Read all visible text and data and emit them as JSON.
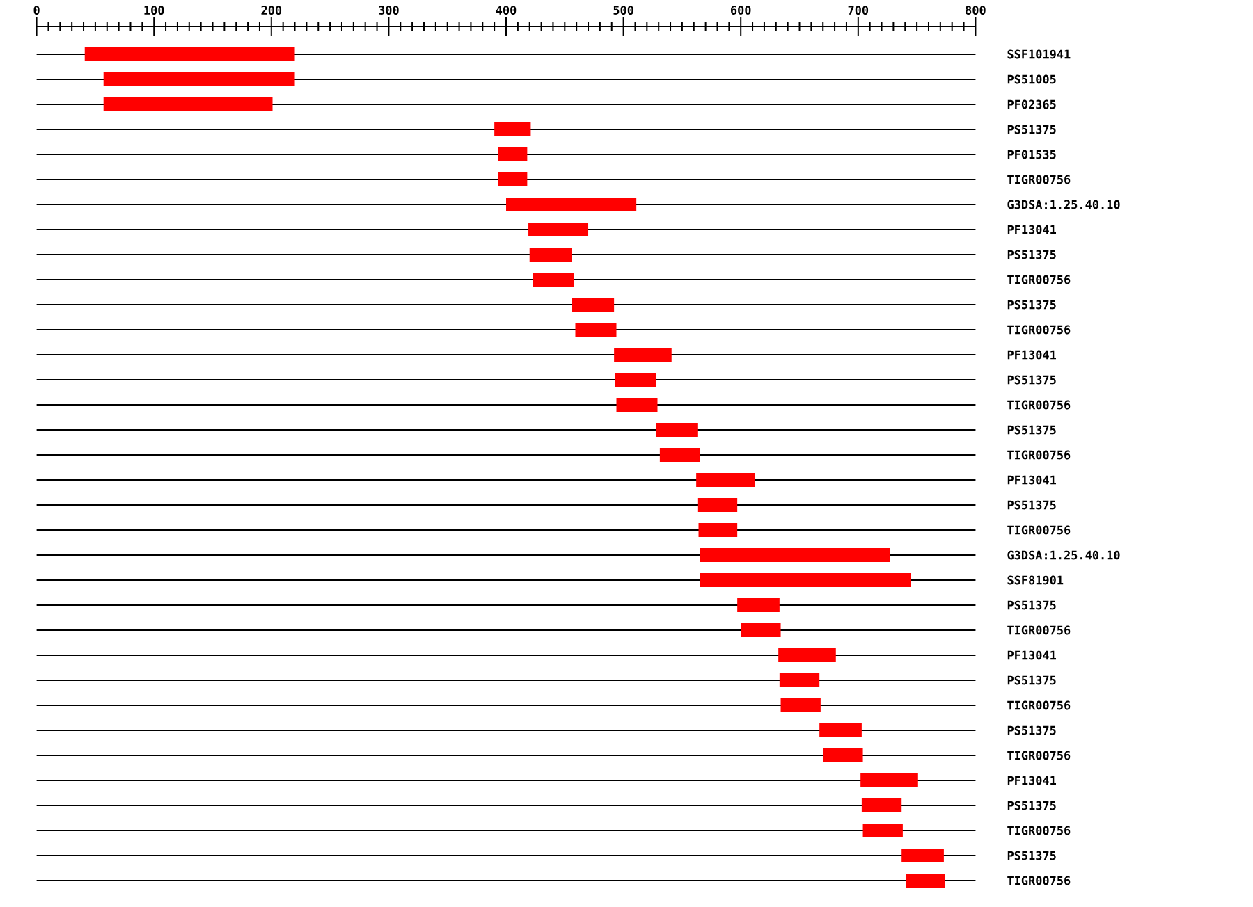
{
  "chart_data": {
    "type": "bar",
    "orientation": "horizontal",
    "grid": "y",
    "categories": [
      "SSF101941",
      "PS51005",
      "PF02365",
      "PS51375",
      "PF01535",
      "TIGR00756",
      "G3DSA:1.25.40.10",
      "PF13041",
      "PS51375",
      "TIGR00756",
      "PS51375",
      "TIGR00756",
      "PF13041",
      "PS51375",
      "TIGR00756",
      "PS51375",
      "TIGR00756",
      "PF13041",
      "PS51375",
      "TIGR00756",
      "G3DSA:1.25.40.10",
      "SSF81901",
      "PS51375",
      "TIGR00756",
      "PF13041",
      "PS51375",
      "TIGR00756",
      "PS51375",
      "TIGR00756",
      "PF13041",
      "PS51375",
      "TIGR00756",
      "PS51375",
      "TIGR00756"
    ],
    "base": [
      41,
      57,
      57,
      390,
      393,
      393,
      400,
      419,
      420,
      423,
      456,
      459,
      492,
      493,
      494,
      528,
      531,
      562,
      563,
      564,
      565,
      565,
      597,
      600,
      632,
      633,
      634,
      667,
      670,
      702,
      703,
      704,
      737,
      741
    ],
    "values": [
      179,
      163,
      144,
      31,
      25,
      25,
      111,
      51,
      36,
      35,
      36,
      35,
      49,
      35,
      35,
      35,
      34,
      50,
      34,
      33,
      162,
      180,
      36,
      34,
      49,
      34,
      34,
      36,
      34,
      49,
      34,
      34,
      36,
      33
    ],
    "color": "#ff0000",
    "xlim": [
      0,
      800
    ],
    "xticks": [
      0,
      {
        "value": 10,
        "label": null
      },
      {
        "value": 20,
        "label": null
      },
      {
        "value": 30,
        "label": null
      },
      {
        "value": 40,
        "label": null
      },
      {
        "value": 50,
        "label": null
      },
      {
        "value": 60,
        "label": null
      },
      {
        "value": 70,
        "label": null
      },
      {
        "value": 80,
        "label": null
      },
      {
        "value": 90,
        "label": null
      },
      100,
      {
        "value": 110,
        "label": null
      },
      {
        "value": 120,
        "label": null
      },
      {
        "value": 130,
        "label": null
      },
      {
        "value": 140,
        "label": null
      },
      {
        "value": 150,
        "label": null
      },
      {
        "value": 160,
        "label": null
      },
      {
        "value": 170,
        "label": null
      },
      {
        "value": 180,
        "label": null
      },
      {
        "value": 190,
        "label": null
      },
      200,
      {
        "value": 210,
        "label": null
      },
      {
        "value": 220,
        "label": null
      },
      {
        "value": 230,
        "label": null
      },
      {
        "value": 240,
        "label": null
      },
      {
        "value": 250,
        "label": null
      },
      {
        "value": 260,
        "label": null
      },
      {
        "value": 270,
        "label": null
      },
      {
        "value": 280,
        "label": null
      },
      {
        "value": 290,
        "label": null
      },
      300,
      {
        "value": 310,
        "label": null
      },
      {
        "value": 320,
        "label": null
      },
      {
        "value": 330,
        "label": null
      },
      {
        "value": 340,
        "label": null
      },
      {
        "value": 350,
        "label": null
      },
      {
        "value": 360,
        "label": null
      },
      {
        "value": 370,
        "label": null
      },
      {
        "value": 380,
        "label": null
      },
      {
        "value": 390,
        "label": null
      },
      400,
      {
        "value": 410,
        "label": null
      },
      {
        "value": 420,
        "label": null
      },
      {
        "value": 430,
        "label": null
      },
      {
        "value": 440,
        "label": null
      },
      {
        "value": 450,
        "label": null
      },
      {
        "value": 460,
        "label": null
      },
      {
        "value": 470,
        "label": null
      },
      {
        "value": 480,
        "label": null
      },
      {
        "value": 490,
        "label": null
      },
      500,
      {
        "value": 510,
        "label": null
      },
      {
        "value": 520,
        "label": null
      },
      {
        "value": 530,
        "label": null
      },
      {
        "value": 540,
        "label": null
      },
      {
        "value": 550,
        "label": null
      },
      {
        "value": 560,
        "label": null
      },
      {
        "value": 570,
        "label": null
      },
      {
        "value": 580,
        "label": null
      },
      {
        "value": 590,
        "label": null
      },
      600,
      {
        "value": 610,
        "label": null
      },
      {
        "value": 620,
        "label": null
      },
      {
        "value": 630,
        "label": null
      },
      {
        "value": 640,
        "label": null
      },
      {
        "value": 650,
        "label": null
      },
      {
        "value": 660,
        "label": null
      },
      {
        "value": 670,
        "label": null
      },
      {
        "value": 680,
        "label": null
      },
      {
        "value": 690,
        "label": null
      },
      700,
      {
        "value": 710,
        "label": null
      },
      {
        "value": 720,
        "label": null
      },
      {
        "value": 730,
        "label": null
      },
      {
        "value": 740,
        "label": null
      },
      {
        "value": 750,
        "label": null
      },
      {
        "value": 760,
        "label": null
      },
      {
        "value": 770,
        "label": null
      },
      {
        "value": 780,
        "label": null
      },
      {
        "value": 790,
        "label": null
      },
      800
    ]
  }
}
